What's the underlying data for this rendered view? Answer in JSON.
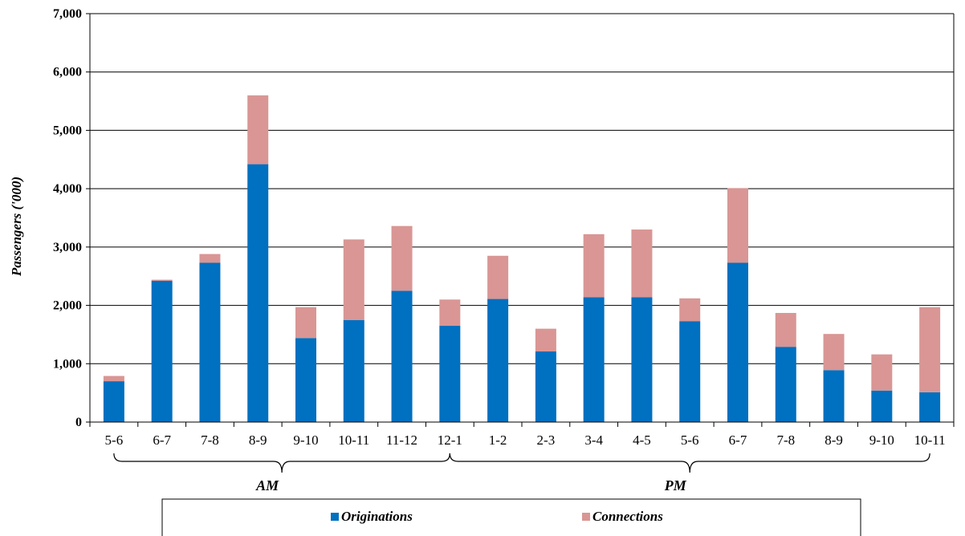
{
  "chart_data": {
    "type": "bar",
    "stacked": true,
    "ylabel": "Passengers ('000)",
    "xlabel": "",
    "ylim": [
      0,
      7000
    ],
    "yticks": [
      0,
      1000,
      2000,
      3000,
      4000,
      5000,
      6000,
      7000
    ],
    "ytick_labels": [
      "0",
      "1,000",
      "2,000",
      "3,000",
      "4,000",
      "5,000",
      "6,000",
      "7,000"
    ],
    "grid": true,
    "legend_position": "bottom",
    "categories": [
      "5-6",
      "6-7",
      "7-8",
      "8-9",
      "9-10",
      "10-11",
      "11-12",
      "12-1",
      "1-2",
      "2-3",
      "3-4",
      "4-5",
      "5-6",
      "6-7",
      "7-8",
      "8-9",
      "9-10",
      "10-11"
    ],
    "groups": [
      {
        "label": "AM",
        "from": 0,
        "to": 7
      },
      {
        "label": "PM",
        "from": 7,
        "to": 17
      }
    ],
    "series": [
      {
        "name": "Originations",
        "color": "#0070c0",
        "values": [
          700,
          2420,
          2730,
          4420,
          1440,
          1750,
          2250,
          1650,
          2110,
          1210,
          2140,
          2140,
          1730,
          2730,
          1290,
          890,
          540,
          510
        ]
      },
      {
        "name": "Connections",
        "color": "#d99694",
        "values": [
          90,
          20,
          150,
          1180,
          530,
          1380,
          1110,
          450,
          740,
          390,
          1080,
          1160,
          390,
          1280,
          580,
          620,
          620,
          1460
        ]
      }
    ]
  }
}
